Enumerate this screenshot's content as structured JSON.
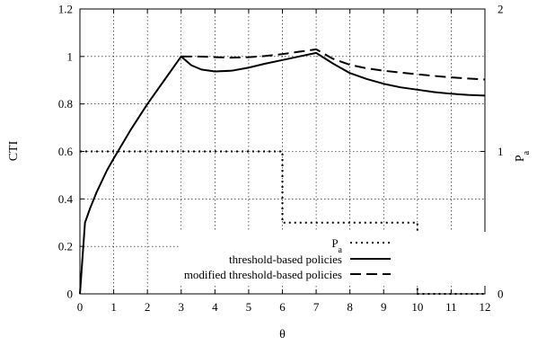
{
  "chart_data": {
    "type": "line",
    "xlabel": "θ",
    "ylabel": "CTI",
    "y2label": "P",
    "xlim": [
      0,
      12
    ],
    "ylim": [
      0,
      1.2
    ],
    "y2lim": [
      0,
      2
    ],
    "grid": true,
    "legend_position": "bottom-center",
    "x_ticks": [
      "0",
      "1",
      "2",
      "3",
      "4",
      "5",
      "6",
      "7",
      "8",
      "9",
      "10",
      "11",
      "12"
    ],
    "y_ticks": [
      "0",
      "0.2",
      "0.4",
      "0.6",
      "0.8",
      "1",
      "1.2"
    ],
    "y2_ticks": [
      "0",
      "1",
      "2"
    ],
    "series": [
      {
        "name": "P",
        "name_subscript": "a",
        "axis": "right",
        "style": "dotted",
        "color": "#000000",
        "x": [
          0,
          6,
          6,
          10,
          10,
          12
        ],
        "y": [
          1,
          1,
          0.5,
          0.5,
          0,
          0
        ]
      },
      {
        "name": "threshold-based policies",
        "axis": "left",
        "style": "solid",
        "color": "#000000",
        "x": [
          0,
          0.15,
          0.3,
          0.5,
          0.8,
          1.0,
          1.5,
          2.0,
          2.5,
          3.0,
          3.3,
          3.6,
          4.0,
          4.5,
          5.0,
          5.5,
          6.0,
          6.5,
          7.0,
          7.5,
          8.0,
          8.5,
          9.0,
          9.5,
          10.0,
          10.5,
          11.0,
          11.5,
          12.0
        ],
        "y": [
          0,
          0.3,
          0.36,
          0.43,
          0.52,
          0.57,
          0.69,
          0.8,
          0.9,
          1.0,
          0.963,
          0.945,
          0.937,
          0.94,
          0.953,
          0.97,
          0.985,
          1.0,
          1.015,
          0.97,
          0.93,
          0.905,
          0.885,
          0.87,
          0.86,
          0.85,
          0.843,
          0.838,
          0.835
        ]
      },
      {
        "name": "modified threshold-based policies",
        "axis": "left",
        "style": "dashed",
        "color": "#000000",
        "x": [
          3.0,
          3.5,
          4.0,
          4.5,
          5.0,
          5.5,
          6.0,
          6.5,
          7.0,
          7.5,
          8.0,
          8.5,
          9.0,
          9.5,
          10.0,
          10.5,
          11.0,
          11.5,
          12.0
        ],
        "y": [
          1.0,
          1.0,
          0.997,
          0.995,
          0.997,
          1.002,
          1.01,
          1.02,
          1.03,
          0.99,
          0.965,
          0.95,
          0.94,
          0.932,
          0.925,
          0.918,
          0.912,
          0.907,
          0.903
        ]
      }
    ]
  }
}
